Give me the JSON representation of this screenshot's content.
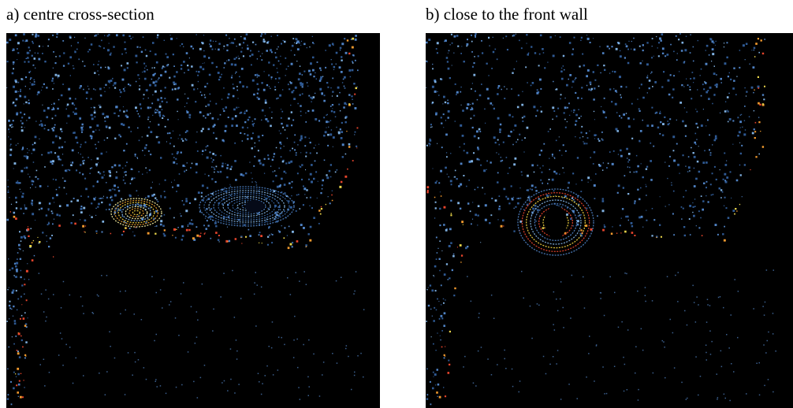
{
  "panels": [
    {
      "label": "a) centre cross-section"
    },
    {
      "label": "b) close to the front wall"
    }
  ]
}
